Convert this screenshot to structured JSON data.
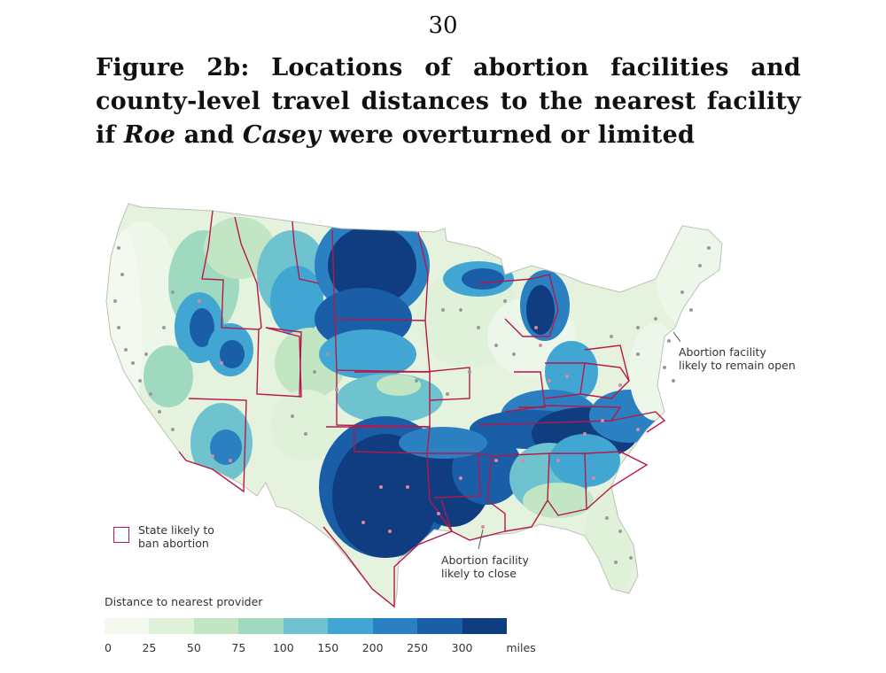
{
  "page_number": "30",
  "figure": {
    "title_part1": "Figure 2b: Locations of abortion facilities and county-level travel distances to the nearest facility if ",
    "title_em1": "Roe",
    "title_mid": " and ",
    "title_em2": "Casey",
    "title_part2": " were overturned or limited"
  },
  "annotations": {
    "open_line1": "Abortion facility",
    "open_line2": "likely to remain open",
    "close_line1": "Abortion facility",
    "close_line2": "likely to close",
    "ban_line1": "State likely to",
    "ban_line2": "ban abortion"
  },
  "legend": {
    "title": "Distance to nearest provider",
    "ticks": [
      "0",
      "25",
      "50",
      "75",
      "100",
      "150",
      "200",
      "250",
      "300"
    ],
    "unit": "miles",
    "colors": [
      "#f3f9ef",
      "#dff1d9",
      "#c2e6c4",
      "#9ed9c0",
      "#6fc3cf",
      "#41a6d2",
      "#2a80c0",
      "#1a5ea8",
      "#0f3d80"
    ]
  },
  "colors": {
    "ban_border": "#b8174b",
    "facility_open": "#9a9a9a",
    "facility_close": "#d98aa0"
  }
}
